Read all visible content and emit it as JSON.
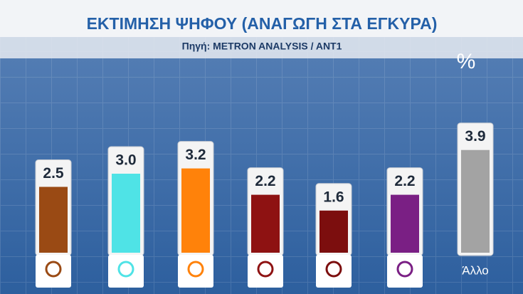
{
  "chart_data": {
    "type": "bar",
    "title": "ΕΚΤΙΜΗΣΗ ΨΗΦΟΥ (ΑΝΑΓΩΓΗ ΣΤΑ ΕΓΚΥΡΑ)",
    "subtitle": "Πηγή: METRON ANALYSIS / ANT1",
    "unit": "%",
    "categories": [
      null,
      null,
      null,
      null,
      null,
      null,
      "Άλλο"
    ],
    "values": [
      2.5,
      3.0,
      3.2,
      2.2,
      1.6,
      2.2,
      3.9
    ],
    "value_labels": [
      "2.5",
      "3.0",
      "3.2",
      "2.2",
      "1.6",
      "2.2",
      "3.9"
    ],
    "colors": [
      "#9a4a14",
      "#4fe3e6",
      "#ff820a",
      "#8e1212",
      "#7c0e0e",
      "#7a1f84",
      "#a3a3a3"
    ]
  }
}
